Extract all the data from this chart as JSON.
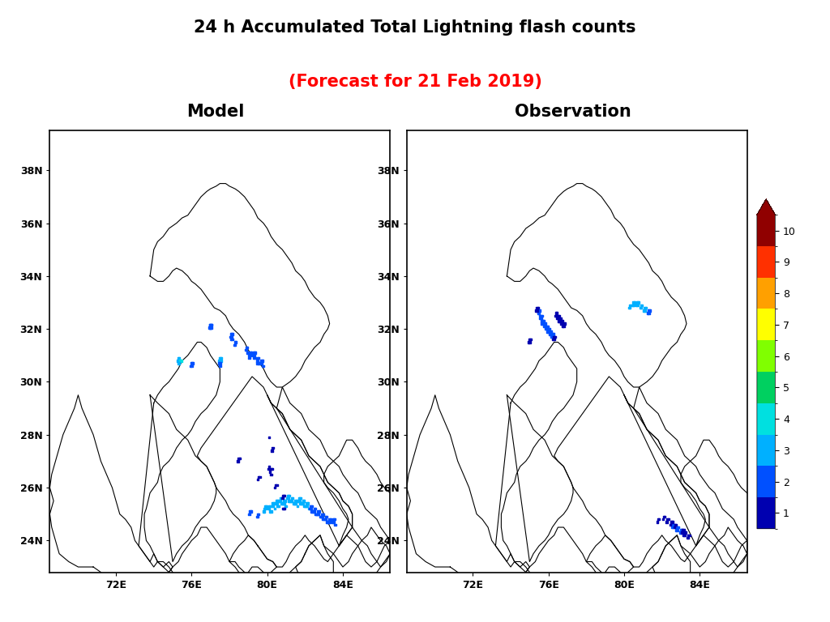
{
  "title_line1": "24 h Accumulated Total Lightning flash counts",
  "title_line2": "(Forecast for 21 Feb 2019)",
  "title_line1_color": "#000000",
  "title_line2_color": "#ff0000",
  "title_fontsize": 15,
  "subtitle_fontsize": 15,
  "panel_labels": [
    "Model",
    "Observation"
  ],
  "lon_min": 68.5,
  "lon_max": 86.5,
  "lat_min": 22.8,
  "lat_max": 39.5,
  "xticks": [
    72,
    76,
    80,
    84
  ],
  "yticks": [
    24,
    26,
    28,
    30,
    32,
    34,
    36,
    38
  ],
  "colorbar_colors": [
    "#0000b0",
    "#0050ff",
    "#00b0ff",
    "#00e0e0",
    "#00d060",
    "#80ff00",
    "#ffff00",
    "#ffa000",
    "#ff3000",
    "#900000"
  ],
  "background_color": "#ffffff",
  "map_linewidth": 0.8,
  "map_linecolor": "#000000",
  "scatter_size": 3,
  "model_flash_lons": [
    76.97,
    77.0,
    77.03,
    77.06,
    76.94,
    76.97,
    77.0,
    77.03,
    75.3,
    75.35,
    75.25,
    75.3,
    75.4,
    75.45,
    75.35,
    75.3,
    76.0,
    76.05,
    75.95,
    76.0,
    77.5,
    77.55,
    77.45,
    77.55,
    77.5,
    77.45,
    77.5,
    78.1,
    78.15,
    78.05,
    78.1,
    78.15,
    78.08,
    78.3,
    78.35,
    78.25,
    78.3,
    78.9,
    78.95,
    78.85,
    78.9,
    78.95,
    79.1,
    79.15,
    79.05,
    79.1,
    79.05,
    79.3,
    79.35,
    79.25,
    79.3,
    79.35,
    79.28,
    79.5,
    79.55,
    79.45,
    79.5,
    79.55,
    79.48,
    79.7,
    79.75,
    79.65,
    79.7,
    79.75,
    79.8,
    79.9,
    79.95,
    79.85,
    79.9,
    79.8,
    79.85,
    80.1,
    80.15,
    80.05,
    80.1,
    80.2,
    80.15,
    80.3,
    80.35,
    80.25,
    80.3,
    80.4,
    80.5,
    80.55,
    80.45,
    80.5,
    80.6,
    80.55,
    80.7,
    80.75,
    80.65,
    80.7,
    80.8,
    80.75,
    80.9,
    80.95,
    80.85,
    80.9,
    81.0,
    80.95,
    81.1,
    81.15,
    81.05,
    81.1,
    81.2,
    81.15,
    81.3,
    81.35,
    81.25,
    81.3,
    81.4,
    81.5,
    81.55,
    81.45,
    81.5,
    81.6,
    81.7,
    81.75,
    81.65,
    81.7,
    81.8,
    81.75,
    81.9,
    81.95,
    81.85,
    81.9,
    82.0,
    81.95,
    82.1,
    82.15,
    82.05,
    82.1,
    82.2,
    82.3,
    82.35,
    82.25,
    82.3,
    82.4,
    82.35,
    82.5,
    82.55,
    82.45,
    82.5,
    82.6,
    82.55,
    82.7,
    82.75,
    82.65,
    82.7,
    82.8,
    82.9,
    82.95,
    82.85,
    82.9,
    83.0,
    82.95,
    83.1,
    83.15,
    83.05,
    83.1,
    83.2,
    83.15,
    83.3,
    83.35,
    83.25,
    83.3,
    83.5,
    83.55,
    83.45,
    83.5,
    83.6,
    79.5,
    79.55,
    79.45,
    79.5,
    79.1,
    79.15,
    79.05,
    80.3,
    80.25,
    78.5,
    78.55,
    78.45,
    79.55,
    79.6,
    79.5,
    80.85,
    80.9,
    80.8,
    80.1,
    80.05,
    80.85,
    80.9,
    80.45,
    80.5,
    80.4,
    80.2,
    80.25,
    80.15,
    80.2,
    80.1
  ],
  "model_flash_lats": [
    32.15,
    32.15,
    32.15,
    32.15,
    32.05,
    32.05,
    32.05,
    32.05,
    30.9,
    30.9,
    30.8,
    30.8,
    30.8,
    30.8,
    30.7,
    30.7,
    30.7,
    30.7,
    30.6,
    30.6,
    30.9,
    30.9,
    30.8,
    30.8,
    30.7,
    30.7,
    30.6,
    31.8,
    31.8,
    31.7,
    31.7,
    31.6,
    31.6,
    31.5,
    31.5,
    31.4,
    31.4,
    31.3,
    31.3,
    31.2,
    31.2,
    31.1,
    31.1,
    31.1,
    31.0,
    31.0,
    30.9,
    31.1,
    31.1,
    31.0,
    31.0,
    30.9,
    30.9,
    30.9,
    30.9,
    30.8,
    30.8,
    30.7,
    30.7,
    30.8,
    30.8,
    30.7,
    30.7,
    30.6,
    30.6,
    25.3,
    25.3,
    25.2,
    25.2,
    25.1,
    25.1,
    25.3,
    25.3,
    25.2,
    25.2,
    25.1,
    25.1,
    25.4,
    25.4,
    25.3,
    25.3,
    25.2,
    25.5,
    25.5,
    25.4,
    25.4,
    25.3,
    25.3,
    25.6,
    25.6,
    25.5,
    25.5,
    25.4,
    25.4,
    25.5,
    25.5,
    25.4,
    25.4,
    25.3,
    25.3,
    25.7,
    25.7,
    25.6,
    25.6,
    25.5,
    25.5,
    25.6,
    25.6,
    25.5,
    25.5,
    25.4,
    25.5,
    25.5,
    25.4,
    25.4,
    25.3,
    25.6,
    25.6,
    25.5,
    25.5,
    25.4,
    25.4,
    25.5,
    25.5,
    25.4,
    25.4,
    25.3,
    25.3,
    25.4,
    25.4,
    25.3,
    25.3,
    25.2,
    25.3,
    25.3,
    25.2,
    25.2,
    25.1,
    25.1,
    25.2,
    25.2,
    25.1,
    25.1,
    25.0,
    25.0,
    25.1,
    25.1,
    25.0,
    25.0,
    24.9,
    25.0,
    25.0,
    24.9,
    24.9,
    24.8,
    24.8,
    24.9,
    24.9,
    24.8,
    24.8,
    24.7,
    24.7,
    24.8,
    24.8,
    24.7,
    24.7,
    24.8,
    24.8,
    24.7,
    24.7,
    24.6,
    25.0,
    25.0,
    24.9,
    24.9,
    25.1,
    25.1,
    25.0,
    27.5,
    27.4,
    27.1,
    27.1,
    27.0,
    26.4,
    26.4,
    26.3,
    25.7,
    25.7,
    25.6,
    26.8,
    26.7,
    25.2,
    25.2,
    26.1,
    26.1,
    26.0,
    26.7,
    26.7,
    26.6,
    26.5,
    27.9
  ],
  "model_flash_vals": [
    2,
    2,
    2,
    2,
    2,
    2,
    2,
    2,
    3,
    3,
    3,
    3,
    4,
    4,
    3,
    3,
    2,
    2,
    2,
    2,
    3,
    3,
    3,
    3,
    2,
    2,
    2,
    2,
    2,
    2,
    2,
    2,
    2,
    2,
    2,
    2,
    2,
    2,
    2,
    2,
    2,
    2,
    2,
    2,
    2,
    2,
    2,
    2,
    2,
    2,
    2,
    2,
    2,
    2,
    2,
    2,
    2,
    2,
    2,
    2,
    2,
    2,
    2,
    2,
    2,
    3,
    3,
    3,
    3,
    3,
    3,
    3,
    3,
    3,
    3,
    3,
    3,
    3,
    3,
    3,
    3,
    3,
    3,
    3,
    3,
    3,
    3,
    3,
    3,
    3,
    3,
    3,
    3,
    3,
    3,
    3,
    3,
    3,
    3,
    3,
    3,
    3,
    3,
    3,
    3,
    3,
    3,
    3,
    3,
    3,
    3,
    3,
    3,
    3,
    3,
    3,
    3,
    3,
    3,
    3,
    3,
    3,
    3,
    3,
    3,
    3,
    3,
    3,
    3,
    3,
    3,
    3,
    3,
    2,
    2,
    2,
    2,
    2,
    2,
    2,
    2,
    2,
    2,
    2,
    2,
    2,
    2,
    2,
    2,
    2,
    2,
    2,
    2,
    2,
    2,
    2,
    2,
    2,
    2,
    2,
    2,
    2,
    2,
    2,
    2,
    2,
    2,
    2,
    2,
    2,
    2,
    2,
    2,
    2,
    2,
    2,
    2,
    2,
    1,
    1,
    1,
    1,
    1,
    1,
    1,
    1,
    1,
    1,
    1,
    1,
    1,
    1,
    1,
    1,
    1,
    1,
    1,
    1,
    1,
    1,
    1
  ],
  "obs_flash_lons": [
    75.5,
    75.55,
    75.45,
    75.5,
    75.55,
    75.6,
    75.65,
    75.55,
    75.6,
    75.65,
    75.7,
    75.75,
    75.65,
    75.7,
    75.8,
    75.85,
    75.75,
    75.8,
    75.9,
    75.95,
    75.85,
    75.9,
    76.0,
    76.05,
    75.95,
    76.0,
    76.1,
    76.15,
    76.05,
    76.1,
    76.2,
    76.25,
    76.15,
    76.2,
    76.3,
    76.35,
    76.25,
    76.3,
    76.4,
    76.45,
    76.35,
    76.4,
    76.5,
    76.55,
    76.45,
    76.5,
    76.6,
    76.65,
    76.55,
    76.6,
    76.7,
    76.75,
    76.65,
    76.7,
    76.8,
    76.85,
    76.75,
    76.8,
    75.4,
    75.45,
    75.35,
    75.4,
    75.0,
    75.05,
    74.95,
    75.0,
    80.3,
    80.35,
    80.25,
    80.3,
    80.5,
    80.55,
    80.45,
    80.5,
    80.7,
    80.75,
    80.65,
    80.7,
    80.9,
    80.95,
    80.85,
    80.9,
    81.1,
    81.15,
    81.05,
    81.1,
    81.3,
    81.35,
    81.25,
    81.3,
    82.6,
    82.65,
    82.55,
    82.6,
    82.8,
    82.85,
    82.75,
    82.8,
    83.0,
    83.05,
    82.95,
    83.0,
    83.2,
    83.25,
    83.15,
    83.2,
    83.4,
    83.45,
    83.35,
    83.4,
    82.5,
    82.55,
    82.45,
    82.7,
    82.75,
    82.65,
    83.1,
    83.15,
    83.05,
    82.3,
    82.35,
    82.25,
    82.1,
    82.15,
    82.05,
    81.8,
    81.85,
    81.75
  ],
  "obs_flash_lats": [
    32.7,
    32.7,
    32.6,
    32.6,
    32.5,
    32.5,
    32.5,
    32.4,
    32.4,
    32.3,
    32.3,
    32.3,
    32.2,
    32.2,
    32.2,
    32.2,
    32.1,
    32.1,
    32.1,
    32.1,
    32.0,
    32.0,
    32.0,
    32.0,
    31.9,
    31.9,
    31.9,
    31.9,
    31.8,
    31.8,
    31.8,
    31.8,
    31.7,
    31.7,
    31.7,
    31.7,
    31.6,
    31.6,
    32.6,
    32.6,
    32.5,
    32.5,
    32.5,
    32.5,
    32.4,
    32.4,
    32.4,
    32.4,
    32.3,
    32.3,
    32.3,
    32.3,
    32.2,
    32.2,
    32.2,
    32.2,
    32.1,
    32.1,
    32.8,
    32.8,
    32.7,
    32.7,
    31.6,
    31.6,
    31.5,
    31.5,
    32.9,
    32.9,
    32.8,
    32.8,
    33.0,
    33.0,
    32.9,
    32.9,
    33.0,
    33.0,
    32.9,
    32.9,
    32.9,
    32.9,
    32.8,
    32.8,
    32.8,
    32.8,
    32.7,
    32.7,
    32.7,
    32.7,
    32.6,
    32.6,
    24.6,
    24.6,
    24.5,
    24.5,
    24.5,
    24.5,
    24.4,
    24.4,
    24.4,
    24.4,
    24.3,
    24.3,
    24.3,
    24.3,
    24.2,
    24.2,
    24.2,
    24.2,
    24.1,
    24.1,
    24.7,
    24.7,
    24.6,
    24.6,
    24.6,
    24.5,
    24.4,
    24.4,
    24.3,
    24.8,
    24.8,
    24.7,
    24.9,
    24.9,
    24.8,
    24.8,
    24.8,
    24.7
  ],
  "obs_flash_vals": [
    2,
    2,
    2,
    2,
    2,
    2,
    2,
    2,
    2,
    2,
    2,
    2,
    2,
    2,
    2,
    2,
    2,
    2,
    2,
    2,
    2,
    2,
    2,
    2,
    2,
    2,
    2,
    2,
    2,
    2,
    2,
    2,
    2,
    2,
    1,
    1,
    1,
    1,
    1,
    1,
    1,
    1,
    1,
    1,
    1,
    1,
    1,
    1,
    1,
    1,
    1,
    1,
    1,
    1,
    1,
    1,
    1,
    1,
    1,
    1,
    1,
    1,
    1,
    1,
    1,
    1,
    3,
    3,
    3,
    3,
    3,
    3,
    3,
    3,
    3,
    3,
    3,
    3,
    3,
    3,
    3,
    3,
    3,
    3,
    3,
    3,
    2,
    2,
    2,
    2,
    2,
    2,
    2,
    2,
    2,
    2,
    2,
    2,
    2,
    2,
    2,
    2,
    1,
    1,
    1,
    1,
    1,
    1,
    1,
    1,
    1,
    1,
    1,
    1,
    1,
    1,
    1,
    1,
    1,
    1,
    1,
    1,
    1,
    1,
    1,
    1,
    1,
    1
  ]
}
